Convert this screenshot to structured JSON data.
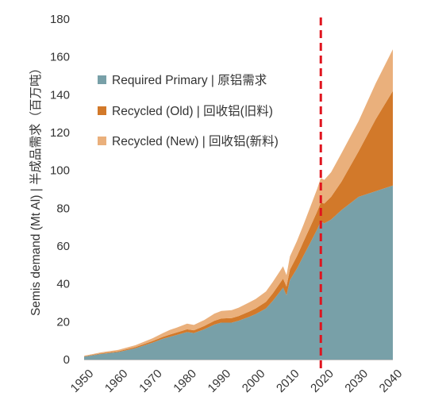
{
  "chart_data": {
    "type": "area",
    "stacked": true,
    "ylabel": "Semis demand (Mt Al) | 半成品需求（百万吨）",
    "xlabel": "",
    "title": "",
    "xlim": [
      1950,
      2040
    ],
    "ylim": [
      0,
      180
    ],
    "yticks": [
      0,
      20,
      40,
      60,
      80,
      100,
      120,
      140,
      160,
      180
    ],
    "xticks": [
      1950,
      1960,
      1970,
      1980,
      1990,
      2000,
      2010,
      2020,
      2030,
      2040
    ],
    "grid": false,
    "legend_position": "top-left",
    "marker_line": {
      "x": 2019,
      "color": "#e0141e",
      "style": "dashed"
    },
    "x": [
      1950,
      1955,
      1960,
      1965,
      1970,
      1973,
      1975,
      1977,
      1980,
      1982,
      1985,
      1988,
      1990,
      1993,
      1995,
      1998,
      2000,
      2003,
      2005,
      2008,
      2009,
      2010,
      2012,
      2014,
      2016,
      2018,
      2019,
      2020,
      2022,
      2025,
      2030,
      2035,
      2040
    ],
    "series": [
      {
        "name": "Required Primary | 原铝需求",
        "color": "#78a0a8",
        "values": [
          1.5,
          3,
          4,
          6,
          9,
          11,
          12,
          13,
          14.5,
          14,
          16,
          18.5,
          19.5,
          19.5,
          20.5,
          22.5,
          24,
          27,
          31,
          38,
          34,
          42,
          48,
          55,
          62,
          69,
          73,
          72,
          74,
          79,
          86,
          89,
          92
        ]
      },
      {
        "name": "Recycled (Old) | 回收铝(旧料)",
        "color": "#d2792a",
        "values": [
          0.2,
          0.3,
          0.4,
          0.6,
          0.8,
          1,
          1.2,
          1.3,
          1.5,
          1.5,
          1.7,
          2,
          2.2,
          2.4,
          2.5,
          2.8,
          3,
          3.5,
          4,
          4.8,
          4.6,
          5.5,
          6.5,
          7.5,
          8.5,
          9.5,
          10,
          10.5,
          12,
          15,
          24,
          38,
          50
        ]
      },
      {
        "name": "Recycled (New) | 回收铝(新料)",
        "color": "#eab07c",
        "values": [
          0.3,
          0.5,
          0.7,
          1,
          1.5,
          2,
          2.5,
          2.6,
          3,
          2.8,
          3.2,
          3.8,
          4,
          4.2,
          4.4,
          4.8,
          5,
          5.5,
          6,
          6.5,
          6,
          7,
          8,
          9,
          10.5,
          12,
          13,
          12.5,
          13,
          15,
          16,
          19,
          22
        ]
      }
    ]
  }
}
